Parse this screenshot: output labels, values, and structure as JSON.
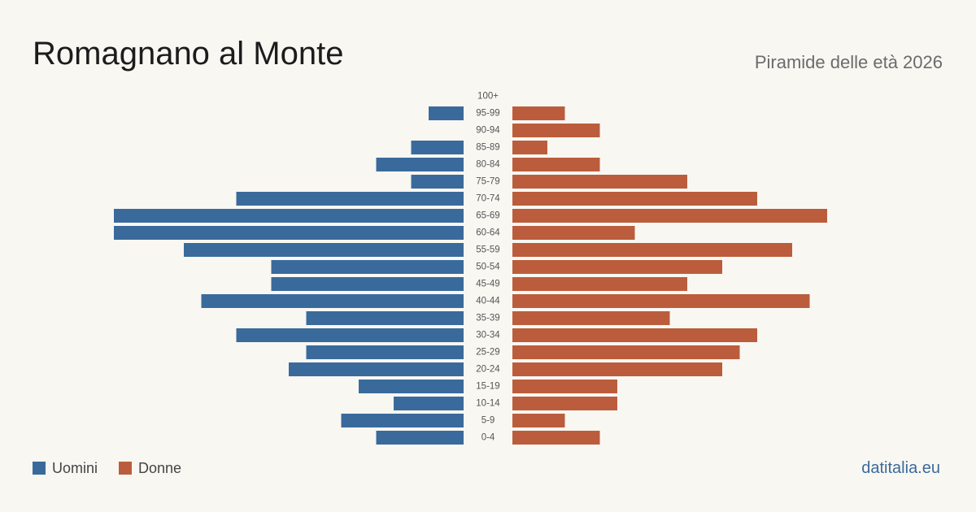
{
  "header": {
    "title": "Romagnano al Monte",
    "subtitle": "Piramide delle età 2026"
  },
  "legend": {
    "men_label": "Uomini",
    "women_label": "Donne"
  },
  "footer": {
    "source": "datitalia.eu"
  },
  "colors": {
    "men": "#3a6a9c",
    "women": "#bb5d3c",
    "source_link": "#3a6a9c"
  },
  "chart_data": {
    "type": "bar",
    "orientation": "horizontal-pyramid",
    "categories": [
      "100+",
      "95-99",
      "90-94",
      "85-89",
      "80-84",
      "75-79",
      "70-74",
      "65-69",
      "60-64",
      "55-59",
      "50-54",
      "45-49",
      "40-44",
      "35-39",
      "30-34",
      "25-29",
      "20-24",
      "15-19",
      "10-14",
      "5-9",
      "0-4"
    ],
    "series": [
      {
        "name": "Uomini",
        "side": "left",
        "values": [
          0,
          2,
          0,
          3,
          5,
          3,
          13,
          20,
          20,
          16,
          11,
          11,
          15,
          9,
          13,
          9,
          10,
          6,
          4,
          7,
          5
        ]
      },
      {
        "name": "Donne",
        "side": "right",
        "values": [
          0,
          3,
          5,
          2,
          5,
          10,
          14,
          18,
          7,
          16,
          12,
          10,
          17,
          9,
          14,
          13,
          12,
          6,
          6,
          3,
          5
        ]
      }
    ],
    "legend_position": "bottom-left",
    "grid": false
  }
}
